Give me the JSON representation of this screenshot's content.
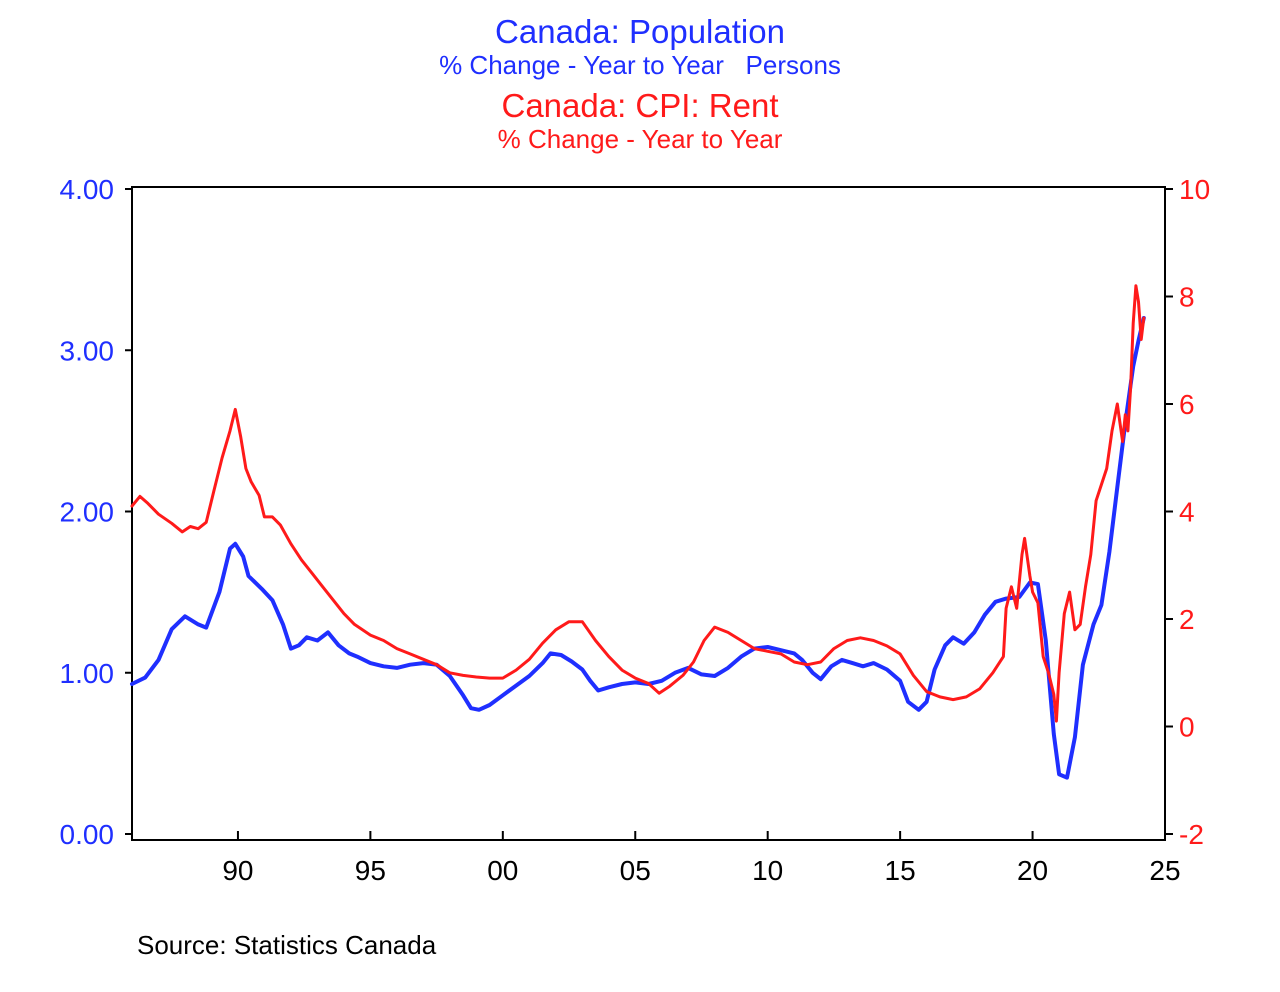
{
  "colors": {
    "population": "#1f2fff",
    "rent": "#ff1a1a",
    "axis": "#000000"
  },
  "titles": {
    "population_title": "Canada: Population",
    "population_subtitle": "% Change - Year to Year   Persons",
    "rent_title": "Canada: CPI: Rent",
    "rent_subtitle": "% Change - Year to Year"
  },
  "source": "Source:  Statistics Canada",
  "chart_data": {
    "type": "line",
    "x_axis": {
      "min": 1986,
      "max": 2025,
      "ticks": [
        1990,
        1995,
        2000,
        2005,
        2010,
        2015,
        2020,
        2025
      ],
      "tick_labels": [
        "90",
        "95",
        "00",
        "05",
        "10",
        "15",
        "20",
        "25"
      ]
    },
    "y_left": {
      "min": 0,
      "max": 4,
      "ticks": [
        0,
        1,
        2,
        3,
        4
      ],
      "tick_labels": [
        "0.00",
        "1.00",
        "2.00",
        "3.00",
        "4.00"
      ]
    },
    "y_right": {
      "min": -2,
      "max": 10,
      "ticks": [
        -2,
        0,
        2,
        4,
        6,
        8,
        10
      ],
      "tick_labels": [
        "-2",
        "0",
        "2",
        "4",
        "6",
        "8",
        "10"
      ]
    },
    "grid": false,
    "series": [
      {
        "name": "Canada: Population",
        "axis": "left",
        "points": [
          [
            1986.0,
            0.93
          ],
          [
            1986.5,
            0.97
          ],
          [
            1987.0,
            1.08
          ],
          [
            1987.5,
            1.27
          ],
          [
            1988.0,
            1.35
          ],
          [
            1988.5,
            1.3
          ],
          [
            1988.8,
            1.28
          ],
          [
            1989.3,
            1.5
          ],
          [
            1989.7,
            1.77
          ],
          [
            1989.9,
            1.8
          ],
          [
            1990.2,
            1.72
          ],
          [
            1990.4,
            1.6
          ],
          [
            1990.9,
            1.52
          ],
          [
            1991.3,
            1.45
          ],
          [
            1991.7,
            1.3
          ],
          [
            1992.0,
            1.15
          ],
          [
            1992.3,
            1.17
          ],
          [
            1992.6,
            1.22
          ],
          [
            1993.0,
            1.2
          ],
          [
            1993.4,
            1.25
          ],
          [
            1993.8,
            1.17
          ],
          [
            1994.2,
            1.12
          ],
          [
            1994.5,
            1.1
          ],
          [
            1995.0,
            1.06
          ],
          [
            1995.5,
            1.04
          ],
          [
            1996.0,
            1.03
          ],
          [
            1996.5,
            1.05
          ],
          [
            1997.0,
            1.06
          ],
          [
            1997.5,
            1.05
          ],
          [
            1998.0,
            0.98
          ],
          [
            1998.5,
            0.86
          ],
          [
            1998.8,
            0.78
          ],
          [
            1999.1,
            0.77
          ],
          [
            1999.5,
            0.8
          ],
          [
            2000.0,
            0.86
          ],
          [
            2000.5,
            0.92
          ],
          [
            2001.0,
            0.98
          ],
          [
            2001.5,
            1.06
          ],
          [
            2001.8,
            1.12
          ],
          [
            2002.2,
            1.11
          ],
          [
            2002.6,
            1.07
          ],
          [
            2003.0,
            1.02
          ],
          [
            2003.3,
            0.95
          ],
          [
            2003.6,
            0.89
          ],
          [
            2004.0,
            0.91
          ],
          [
            2004.5,
            0.93
          ],
          [
            2005.0,
            0.94
          ],
          [
            2005.5,
            0.93
          ],
          [
            2006.0,
            0.95
          ],
          [
            2006.5,
            1.0
          ],
          [
            2007.0,
            1.03
          ],
          [
            2007.5,
            0.99
          ],
          [
            2008.0,
            0.98
          ],
          [
            2008.5,
            1.03
          ],
          [
            2009.0,
            1.1
          ],
          [
            2009.5,
            1.15
          ],
          [
            2010.0,
            1.16
          ],
          [
            2010.5,
            1.14
          ],
          [
            2011.0,
            1.12
          ],
          [
            2011.3,
            1.08
          ],
          [
            2011.7,
            1.0
          ],
          [
            2012.0,
            0.96
          ],
          [
            2012.4,
            1.04
          ],
          [
            2012.8,
            1.08
          ],
          [
            2013.2,
            1.06
          ],
          [
            2013.6,
            1.04
          ],
          [
            2014.0,
            1.06
          ],
          [
            2014.5,
            1.02
          ],
          [
            2015.0,
            0.95
          ],
          [
            2015.3,
            0.82
          ],
          [
            2015.7,
            0.77
          ],
          [
            2016.0,
            0.82
          ],
          [
            2016.3,
            1.02
          ],
          [
            2016.7,
            1.17
          ],
          [
            2017.0,
            1.22
          ],
          [
            2017.4,
            1.18
          ],
          [
            2017.8,
            1.25
          ],
          [
            2018.2,
            1.36
          ],
          [
            2018.6,
            1.44
          ],
          [
            2019.0,
            1.46
          ],
          [
            2019.5,
            1.47
          ],
          [
            2019.9,
            1.56
          ],
          [
            2020.2,
            1.55
          ],
          [
            2020.5,
            1.2
          ],
          [
            2020.8,
            0.62
          ],
          [
            2021.0,
            0.37
          ],
          [
            2021.3,
            0.35
          ],
          [
            2021.6,
            0.6
          ],
          [
            2021.9,
            1.05
          ],
          [
            2022.3,
            1.3
          ],
          [
            2022.6,
            1.42
          ],
          [
            2022.9,
            1.75
          ],
          [
            2023.2,
            2.15
          ],
          [
            2023.5,
            2.55
          ],
          [
            2023.8,
            2.9
          ],
          [
            2024.0,
            3.06
          ],
          [
            2024.2,
            3.2
          ]
        ]
      },
      {
        "name": "Canada: CPI: Rent",
        "axis": "right",
        "points": [
          [
            1986.0,
            4.1
          ],
          [
            1986.3,
            4.28
          ],
          [
            1986.6,
            4.15
          ],
          [
            1987.0,
            3.95
          ],
          [
            1987.5,
            3.78
          ],
          [
            1987.9,
            3.62
          ],
          [
            1988.2,
            3.72
          ],
          [
            1988.5,
            3.68
          ],
          [
            1988.8,
            3.8
          ],
          [
            1989.1,
            4.4
          ],
          [
            1989.4,
            5.0
          ],
          [
            1989.7,
            5.5
          ],
          [
            1989.9,
            5.9
          ],
          [
            1990.1,
            5.4
          ],
          [
            1990.3,
            4.8
          ],
          [
            1990.5,
            4.55
          ],
          [
            1990.8,
            4.3
          ],
          [
            1991.0,
            3.9
          ],
          [
            1991.3,
            3.9
          ],
          [
            1991.6,
            3.75
          ],
          [
            1992.0,
            3.4
          ],
          [
            1992.4,
            3.1
          ],
          [
            1992.8,
            2.85
          ],
          [
            1993.2,
            2.6
          ],
          [
            1993.6,
            2.35
          ],
          [
            1994.0,
            2.1
          ],
          [
            1994.4,
            1.9
          ],
          [
            1995.0,
            1.7
          ],
          [
            1995.5,
            1.6
          ],
          [
            1996.0,
            1.45
          ],
          [
            1996.5,
            1.35
          ],
          [
            1997.0,
            1.25
          ],
          [
            1997.5,
            1.15
          ],
          [
            1998.0,
            1.0
          ],
          [
            1998.5,
            0.95
          ],
          [
            1999.0,
            0.92
          ],
          [
            1999.5,
            0.9
          ],
          [
            2000.0,
            0.9
          ],
          [
            2000.5,
            1.05
          ],
          [
            2001.0,
            1.25
          ],
          [
            2001.5,
            1.55
          ],
          [
            2002.0,
            1.8
          ],
          [
            2002.5,
            1.95
          ],
          [
            2003.0,
            1.95
          ],
          [
            2003.5,
            1.6
          ],
          [
            2004.0,
            1.3
          ],
          [
            2004.5,
            1.05
          ],
          [
            2005.0,
            0.9
          ],
          [
            2005.5,
            0.8
          ],
          [
            2005.9,
            0.62
          ],
          [
            2006.3,
            0.75
          ],
          [
            2006.8,
            0.95
          ],
          [
            2007.2,
            1.2
          ],
          [
            2007.6,
            1.6
          ],
          [
            2008.0,
            1.85
          ],
          [
            2008.5,
            1.75
          ],
          [
            2009.0,
            1.6
          ],
          [
            2009.5,
            1.45
          ],
          [
            2010.0,
            1.4
          ],
          [
            2010.5,
            1.35
          ],
          [
            2011.0,
            1.2
          ],
          [
            2011.5,
            1.15
          ],
          [
            2012.0,
            1.2
          ],
          [
            2012.5,
            1.45
          ],
          [
            2013.0,
            1.6
          ],
          [
            2013.5,
            1.65
          ],
          [
            2014.0,
            1.6
          ],
          [
            2014.5,
            1.5
          ],
          [
            2015.0,
            1.35
          ],
          [
            2015.5,
            0.95
          ],
          [
            2016.0,
            0.65
          ],
          [
            2016.5,
            0.55
          ],
          [
            2017.0,
            0.5
          ],
          [
            2017.5,
            0.55
          ],
          [
            2018.0,
            0.7
          ],
          [
            2018.5,
            1.0
          ],
          [
            2018.9,
            1.3
          ],
          [
            2019.0,
            2.2
          ],
          [
            2019.2,
            2.6
          ],
          [
            2019.4,
            2.2
          ],
          [
            2019.6,
            3.2
          ],
          [
            2019.7,
            3.5
          ],
          [
            2019.9,
            2.8
          ],
          [
            2020.0,
            2.5
          ],
          [
            2020.2,
            2.3
          ],
          [
            2020.4,
            1.3
          ],
          [
            2020.6,
            1.0
          ],
          [
            2020.8,
            0.6
          ],
          [
            2020.9,
            0.1
          ],
          [
            2021.0,
            1.0
          ],
          [
            2021.2,
            2.1
          ],
          [
            2021.4,
            2.5
          ],
          [
            2021.6,
            1.8
          ],
          [
            2021.8,
            1.9
          ],
          [
            2022.0,
            2.6
          ],
          [
            2022.2,
            3.2
          ],
          [
            2022.4,
            4.2
          ],
          [
            2022.6,
            4.5
          ],
          [
            2022.8,
            4.8
          ],
          [
            2023.0,
            5.5
          ],
          [
            2023.2,
            6.0
          ],
          [
            2023.4,
            5.3
          ],
          [
            2023.5,
            5.8
          ],
          [
            2023.6,
            5.5
          ],
          [
            2023.7,
            6.3
          ],
          [
            2023.8,
            7.5
          ],
          [
            2023.9,
            8.2
          ],
          [
            2024.0,
            7.9
          ],
          [
            2024.1,
            7.2
          ],
          [
            2024.2,
            7.6
          ]
        ]
      }
    ]
  }
}
